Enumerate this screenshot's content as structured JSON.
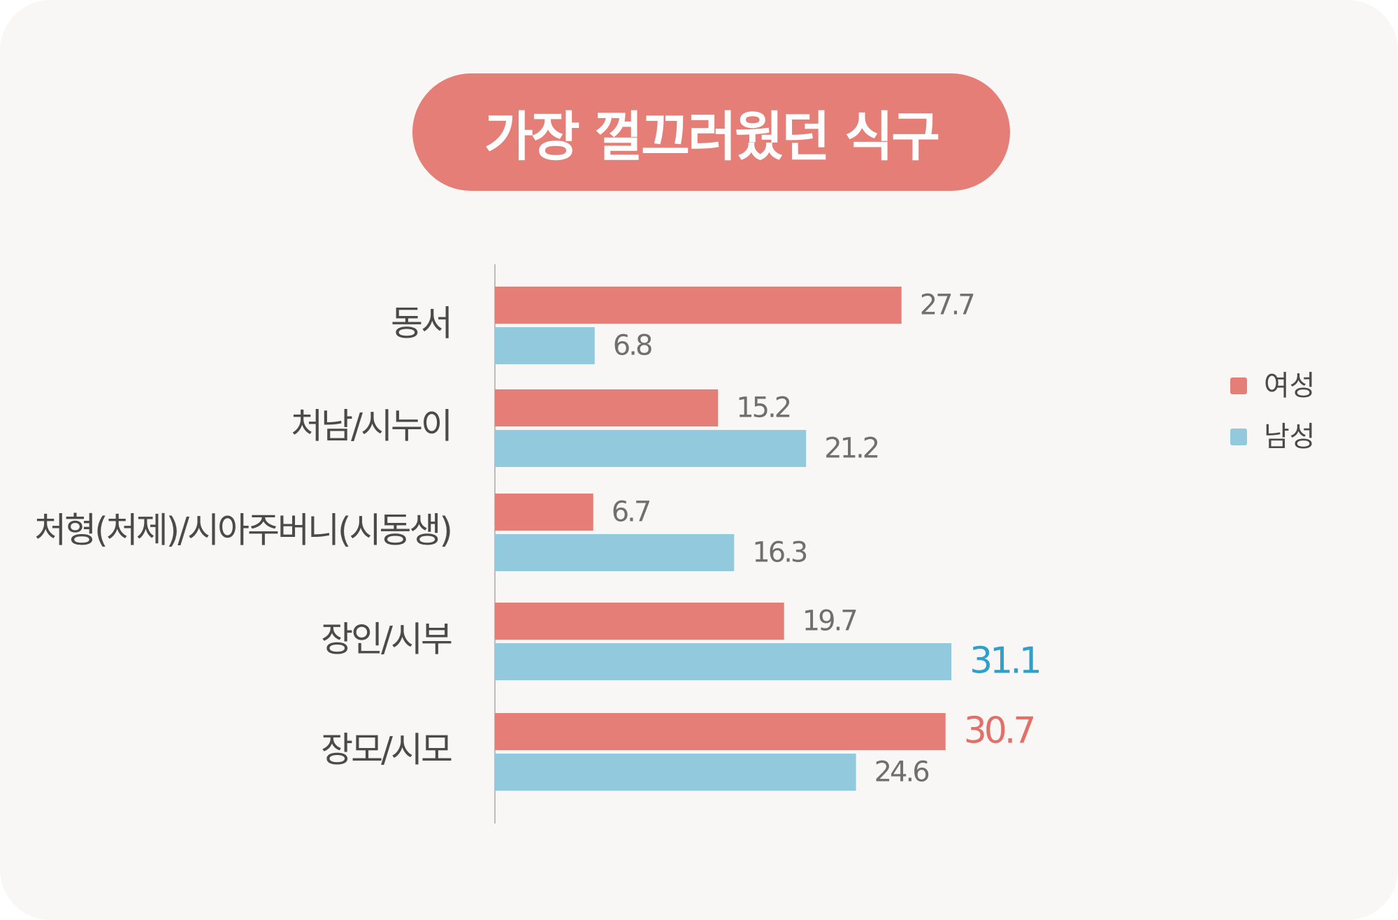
{
  "title": "가장 껄끄러웠던 식구",
  "colors": {
    "female": "#e57e76",
    "male": "#93c9dd",
    "female_highlight": "#e07068",
    "male_highlight": "#2f9fcb",
    "background": "#f8f7f5"
  },
  "chart_data": {
    "type": "bar",
    "orientation": "horizontal",
    "title": "가장 껄끄러웠던 식구",
    "categories": [
      "동서",
      "처남/시누이",
      "처형(처제)/시아주버니(시동생)",
      "장인/시부",
      "장모/시모"
    ],
    "series": [
      {
        "name": "여성",
        "values": [
          27.7,
          15.2,
          6.7,
          19.7,
          30.7
        ]
      },
      {
        "name": "남성",
        "values": [
          6.8,
          21.2,
          16.3,
          31.1,
          24.6
        ]
      }
    ],
    "value_labels": {
      "여성": [
        "27.7",
        "15.2",
        "6.7",
        "19.7",
        "30.7"
      ],
      "남성": [
        "6.8",
        "21.2",
        "16.3",
        "31.1",
        "24.6"
      ]
    },
    "highlighted": [
      {
        "series": "여성",
        "category": "장모/시모"
      },
      {
        "series": "남성",
        "category": "장인/시부"
      }
    ],
    "xlim": [
      0,
      35
    ],
    "grid": false,
    "legend_position": "right"
  }
}
